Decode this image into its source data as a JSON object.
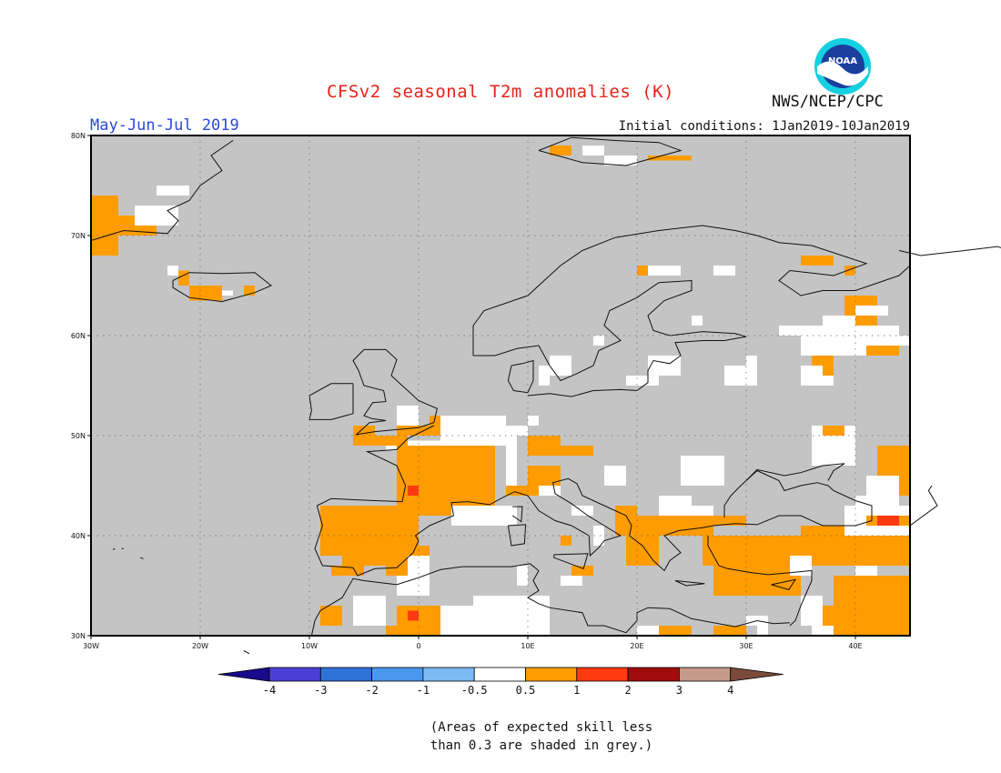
{
  "title": "CFSv2 seasonal T2m anomalies (K)",
  "period": "May-Jun-Jul 2019",
  "initial_conditions": "Initial conditions: 1Jan2019-10Jan2019",
  "agency": "NWS/NCEP/CPC",
  "logo_text": "NOAA",
  "note_line1": "(Areas of expected skill less",
  "note_line2": "than 0.3 are shaded in grey.)",
  "map": {
    "lon_range": [
      -30,
      45
    ],
    "lat_range": [
      30,
      80
    ],
    "lat_ticks": [
      "30N",
      "40N",
      "50N",
      "60N",
      "70N",
      "80N"
    ],
    "lon_ticks": [
      "30W",
      "20W",
      "10W",
      "0",
      "10E",
      "20E",
      "30E",
      "40E"
    ],
    "grid": true,
    "background": "#c4c4c4"
  },
  "colorbar": {
    "labels": [
      "-4",
      "-3",
      "-2",
      "-1",
      "-0.5",
      "0.5",
      "1",
      "2",
      "3",
      "4"
    ],
    "colors": [
      "#1a0a8c",
      "#4a3fd4",
      "#2e72d8",
      "#4a98ee",
      "#7cbaf4",
      "#ffffff",
      "#ff9c00",
      "#ff3a10",
      "#a00c0c",
      "#c49a8a",
      "#7a4a3a"
    ]
  }
}
